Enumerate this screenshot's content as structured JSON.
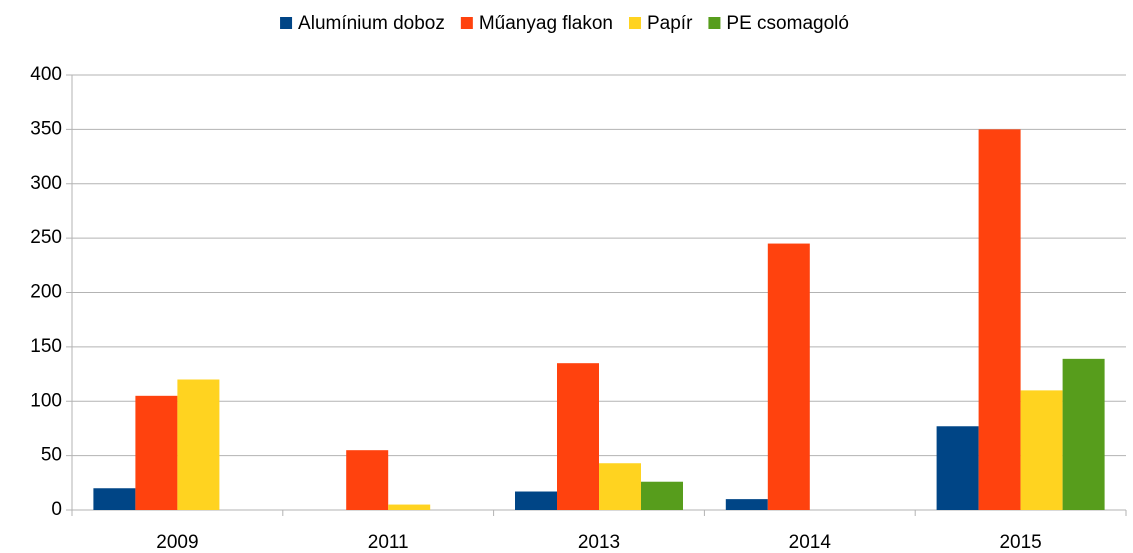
{
  "chart_data": {
    "type": "bar",
    "categories": [
      "2009",
      "2011",
      "2013",
      "2014",
      "2015"
    ],
    "series": [
      {
        "name": "Alumínium doboz",
        "color": "#004586",
        "values": [
          20,
          0,
          17,
          10,
          77
        ]
      },
      {
        "name": "Műanyag flakon",
        "color": "#ff420e",
        "values": [
          105,
          55,
          135,
          245,
          350
        ]
      },
      {
        "name": "Papír",
        "color": "#ffd320",
        "values": [
          120,
          5,
          43,
          0,
          110
        ]
      },
      {
        "name": "PE csomagoló",
        "color": "#579d1c",
        "values": [
          0,
          0,
          26,
          0,
          139
        ]
      }
    ],
    "ylim": [
      0,
      400
    ],
    "yticks": [
      0,
      50,
      100,
      150,
      200,
      250,
      300,
      350,
      400
    ],
    "grid": true,
    "legend": "top"
  }
}
